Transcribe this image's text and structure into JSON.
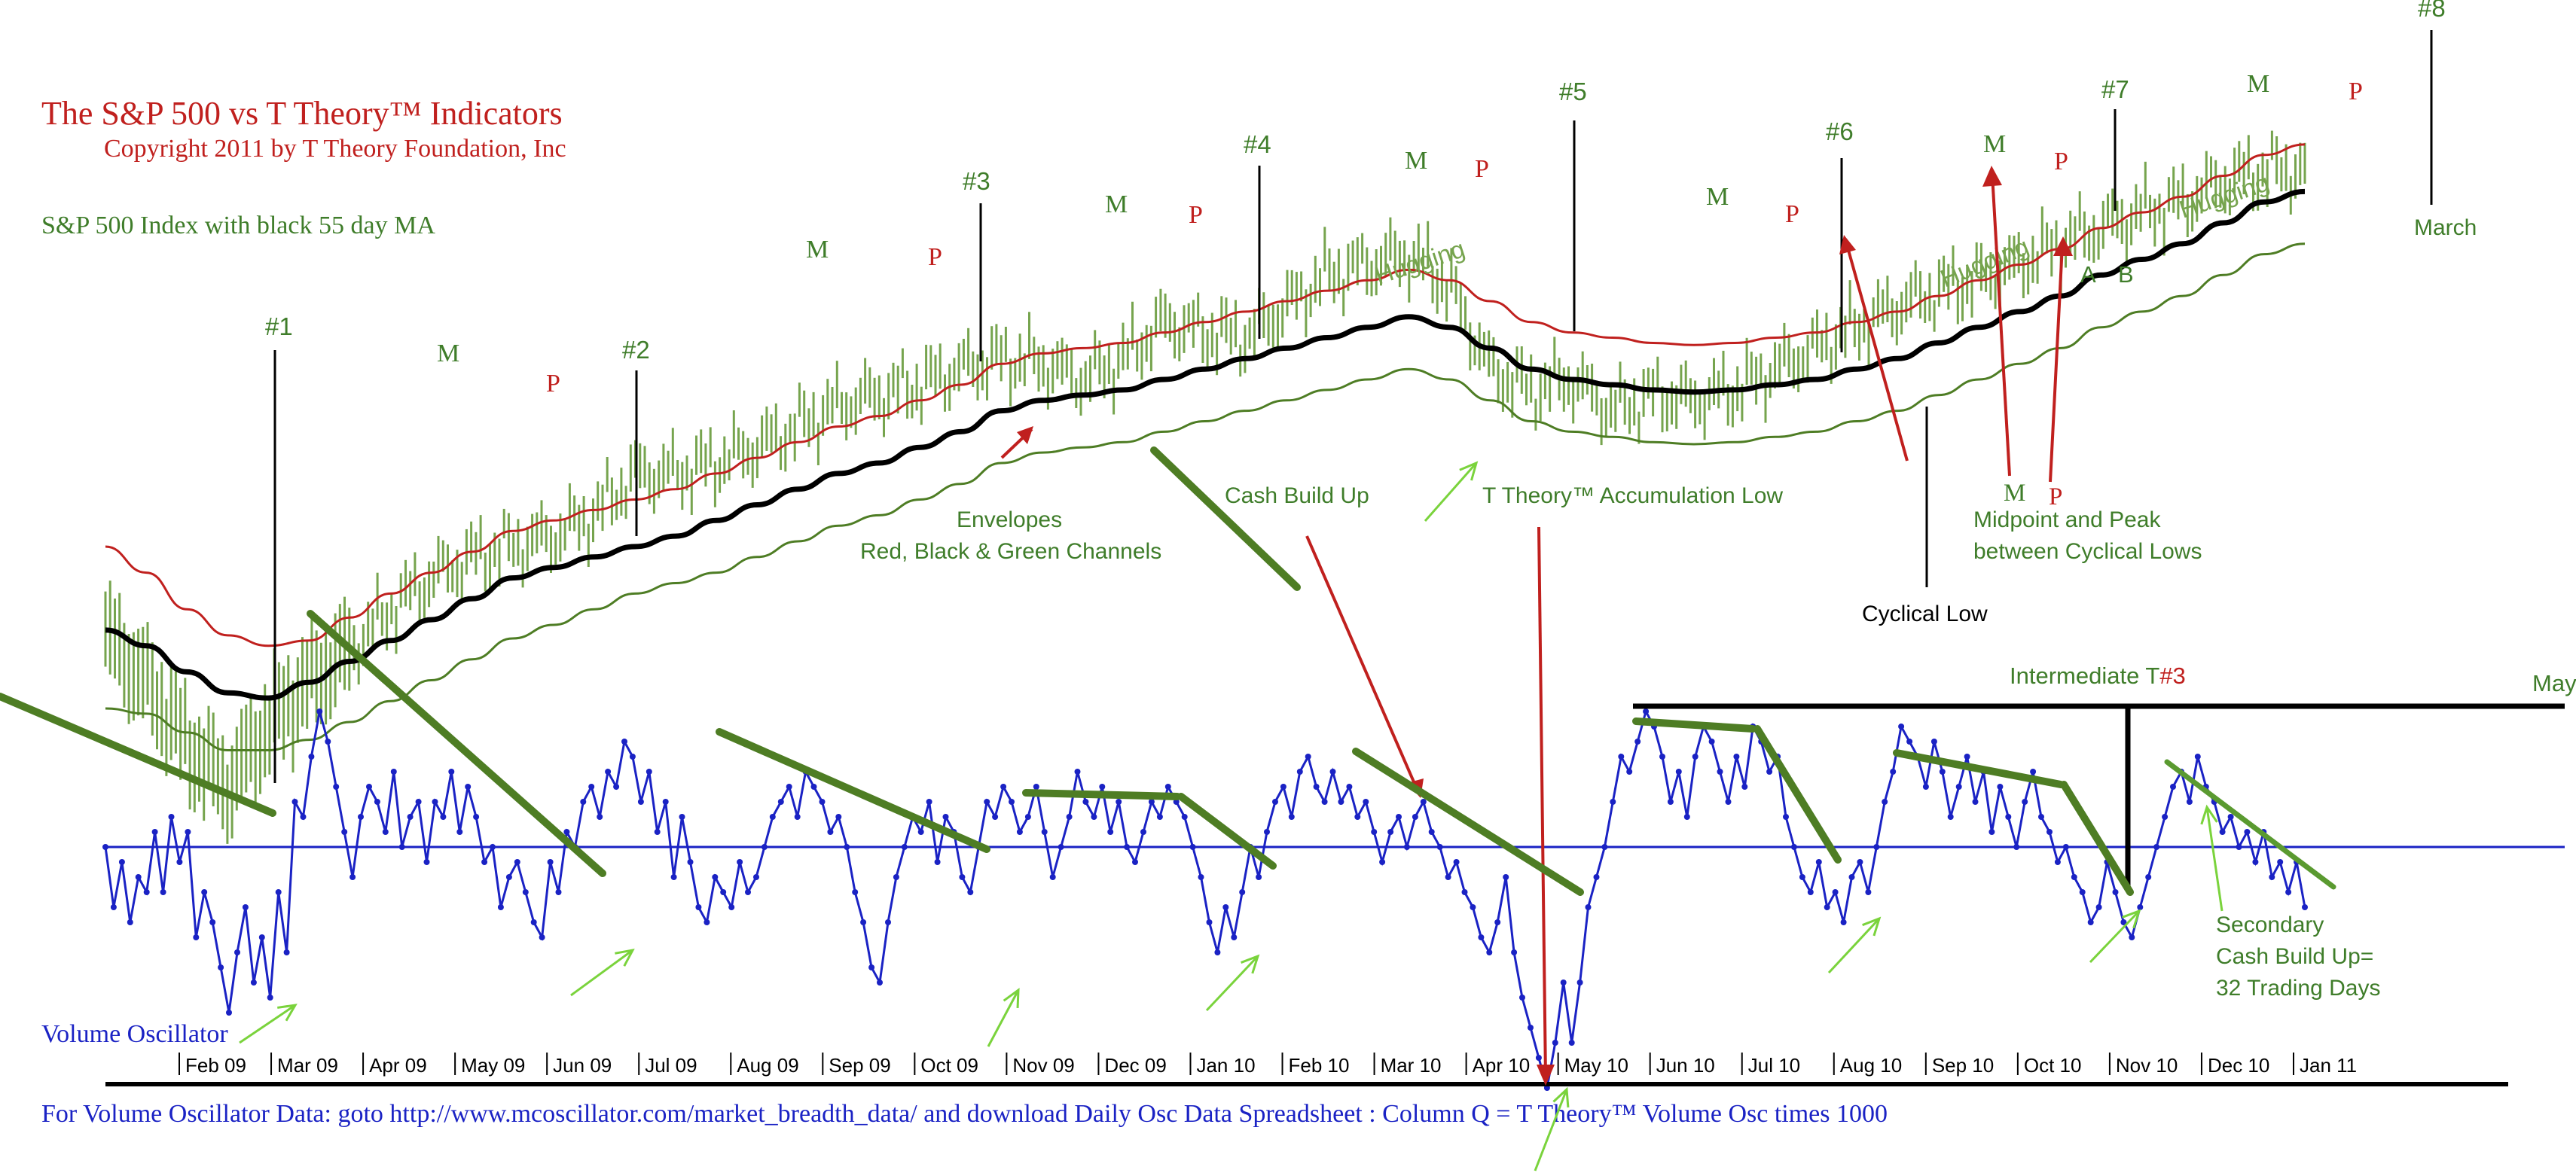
{
  "title": {
    "main": "The S&P 500 vs T Theory™ Indicators",
    "copyright": "Copyright 2011 by T Theory Foundation, Inc",
    "subtitle": "S&P 500 Index with black 55 day MA"
  },
  "footer": {
    "osc_label": "Volume Oscillator",
    "data_note": "For Volume Oscillator Data: goto http://www.mcoscillator.com/market_breadth_data/ and download Daily Osc Data Spreadsheet : Column Q = T Theory™ Volume Osc times 1000"
  },
  "colors": {
    "red": "#c0201e",
    "green_text": "#3f7d2a",
    "green_line": "#4e7d24",
    "green_bars": "#76a44e",
    "light_green": "#7ad33c",
    "blue": "#1a22c4",
    "black": "#000000"
  },
  "chart_data": {
    "type": "line",
    "x_axis": {
      "ticks": [
        "Feb 09",
        "Mar 09",
        "Apr 09",
        "May 09",
        "Jun 09",
        "Jul 09",
        "Aug 09",
        "Sep 09",
        "Oct 09",
        "Nov 09",
        "Dec 09",
        "Jan 10",
        "Feb 10",
        "Mar 10",
        "Apr 10",
        "May 10",
        "Jun 10",
        "Jul 10",
        "Aug 10",
        "Sep 10",
        "Oct 10",
        "Nov 10",
        "Dec 10",
        "Jan 11"
      ]
    },
    "series": [
      {
        "key": "sp500",
        "name": "S&P 500 Index",
        "values": [
          845,
          800,
          740,
          700,
          760,
          800,
          830,
          870,
          900,
          920,
          930,
          940,
          960,
          1000,
          1000,
          1010,
          1025,
          1045,
          1065,
          1075,
          1085,
          1100,
          1110,
          1105,
          1090,
          1110,
          1145,
          1135,
          1130,
          1160,
          1190,
          1200,
          1210,
          1180,
          1100,
          1080,
          1090,
          1060,
          1075,
          1070,
          1080,
          1100,
          1120,
          1140,
          1160,
          1175,
          1185,
          1200,
          1220,
          1235,
          1250,
          1260,
          1280,
          1290,
          1290
        ]
      },
      {
        "key": "ma55",
        "name": "black 55 day MA",
        "values": [
          850,
          835,
          810,
          790,
          785,
          800,
          820,
          840,
          860,
          880,
          900,
          910,
          920,
          930,
          940,
          955,
          970,
          985,
          1000,
          1010,
          1025,
          1040,
          1060,
          1070,
          1075,
          1080,
          1090,
          1100,
          1110,
          1120,
          1130,
          1140,
          1150,
          1140,
          1120,
          1100,
          1090,
          1085,
          1080,
          1078,
          1080,
          1085,
          1090,
          1100,
          1110,
          1125,
          1140,
          1155,
          1170,
          1190,
          1205,
          1220,
          1240,
          1260,
          1270
        ]
      },
      {
        "key": "upper_envelope",
        "name": "red channel",
        "values": [
          930,
          905,
          870,
          845,
          835,
          840,
          862,
          885,
          905,
          925,
          945,
          955,
          965,
          975,
          985,
          1000,
          1015,
          1030,
          1045,
          1055,
          1070,
          1085,
          1105,
          1115,
          1120,
          1125,
          1135,
          1145,
          1155,
          1165,
          1175,
          1185,
          1195,
          1185,
          1165,
          1145,
          1135,
          1130,
          1125,
          1123,
          1125,
          1130,
          1135,
          1145,
          1155,
          1170,
          1185,
          1200,
          1215,
          1235,
          1250,
          1265,
          1285,
          1305,
          1315
        ]
      },
      {
        "key": "lower_envelope",
        "name": "green channel",
        "values": [
          775,
          770,
          752,
          735,
          735,
          745,
          762,
          782,
          802,
          822,
          842,
          855,
          870,
          885,
          895,
          905,
          920,
          935,
          950,
          960,
          975,
          990,
          1010,
          1020,
          1025,
          1030,
          1040,
          1050,
          1060,
          1070,
          1080,
          1090,
          1100,
          1090,
          1070,
          1050,
          1040,
          1035,
          1030,
          1028,
          1030,
          1035,
          1040,
          1050,
          1060,
          1075,
          1090,
          1105,
          1120,
          1140,
          1155,
          1170,
          1190,
          1210,
          1220
        ]
      },
      {
        "key": "volume_osc",
        "name": "Volume Oscillator",
        "values": [
          0,
          -4,
          -1,
          -5,
          -2,
          -3,
          1,
          -3,
          2,
          -1,
          1,
          -6,
          -3,
          -5,
          -8,
          -11,
          -7,
          -4,
          -9,
          -6,
          -10,
          -3,
          -7,
          3,
          2,
          6,
          9,
          7,
          4,
          1,
          -2,
          2,
          4,
          3,
          1,
          5,
          0,
          2,
          3,
          -1,
          3,
          2,
          5,
          1,
          4,
          2,
          -1,
          0,
          -4,
          -2,
          -1,
          -3,
          -5,
          -6,
          -1,
          -3,
          1,
          0,
          3,
          4,
          2,
          5,
          4,
          7,
          6,
          3,
          5,
          1,
          3,
          -2,
          2,
          -1,
          -4,
          -5,
          -2,
          -3,
          -4,
          -1,
          -3,
          -2,
          0,
          2,
          3,
          4,
          2,
          5,
          4,
          3,
          1,
          2,
          0,
          -3,
          -5,
          -8,
          -9,
          -5,
          -2,
          0,
          2,
          1,
          3,
          -1,
          2,
          1,
          -2,
          -3,
          0,
          3,
          2,
          4,
          3,
          1,
          2,
          4,
          1,
          -2,
          0,
          2,
          5,
          3,
          2,
          4,
          1,
          3,
          0,
          -1,
          1,
          3,
          2,
          4,
          3,
          2,
          0,
          -2,
          -5,
          -7,
          -4,
          -6,
          -3,
          0,
          -2,
          1,
          3,
          4,
          2,
          5,
          6,
          4,
          3,
          5,
          3,
          4,
          2,
          3,
          1,
          -1,
          1,
          2,
          0,
          2,
          3,
          1,
          0,
          -2,
          -1,
          -3,
          -4,
          -6,
          -7,
          -5,
          -2,
          -7,
          -10,
          -12,
          -14,
          -16,
          -13,
          -9,
          -13,
          -9,
          -4,
          -2,
          0,
          3,
          6,
          5,
          7,
          9,
          8,
          6,
          3,
          5,
          2,
          6,
          8,
          7,
          5,
          3,
          6,
          4,
          8,
          7,
          5,
          6,
          2,
          0,
          -2,
          -3,
          -1,
          -4,
          -3,
          -5,
          -2,
          -1,
          -3,
          0,
          3,
          5,
          8,
          7,
          6,
          4,
          7,
          5,
          2,
          4,
          6,
          3,
          5,
          1,
          4,
          2,
          0,
          3,
          5,
          2,
          1,
          -1,
          0,
          -2,
          -3,
          -5,
          -4,
          -1,
          -3,
          -5,
          -6,
          -4,
          -2,
          0,
          2,
          4,
          5,
          3,
          6,
          4,
          3,
          1,
          2,
          0,
          1,
          -1,
          1,
          -2,
          -1,
          -3,
          -1,
          -4
        ]
      }
    ],
    "y_left_label": "",
    "x_label": "",
    "grid": false,
    "legend": "none",
    "annotations": {
      "cycle_markers": [
        "#1",
        "#2",
        "#3",
        "#4",
        "#5",
        "#6",
        "#7",
        "#8"
      ],
      "midpoint_labels": [
        "M",
        "M",
        "M",
        "M",
        "M",
        "M",
        "M",
        "M",
        "M"
      ],
      "peak_labels": [
        "P",
        "P",
        "P",
        "P",
        "P",
        "P",
        "P",
        "P",
        "P"
      ],
      "hugging": [
        "Hugging",
        "Hugging",
        "Hugging"
      ],
      "a_label": "A",
      "b_label": "B",
      "envelopes_title": "Envelopes",
      "envelopes_desc": "Red, Black & Green Channels",
      "cash_build_up": "Cash Build Up",
      "accumulation_low": "T Theory™ Accumulation Low",
      "cyclical_low": "Cyclical Low",
      "midpoint_m": "M",
      "midpoint_p": "P",
      "midpoint_line1": "Midpoint and Peak",
      "midpoint_line2": "between Cyclical Lows",
      "march": "March",
      "may": "May",
      "intermediate_prefix": "Intermediate T",
      "intermediate_suffix": "#3",
      "secondary_line1": "Secondary",
      "secondary_line2": "Cash Build Up=",
      "secondary_line3": "32 Trading Days"
    }
  }
}
